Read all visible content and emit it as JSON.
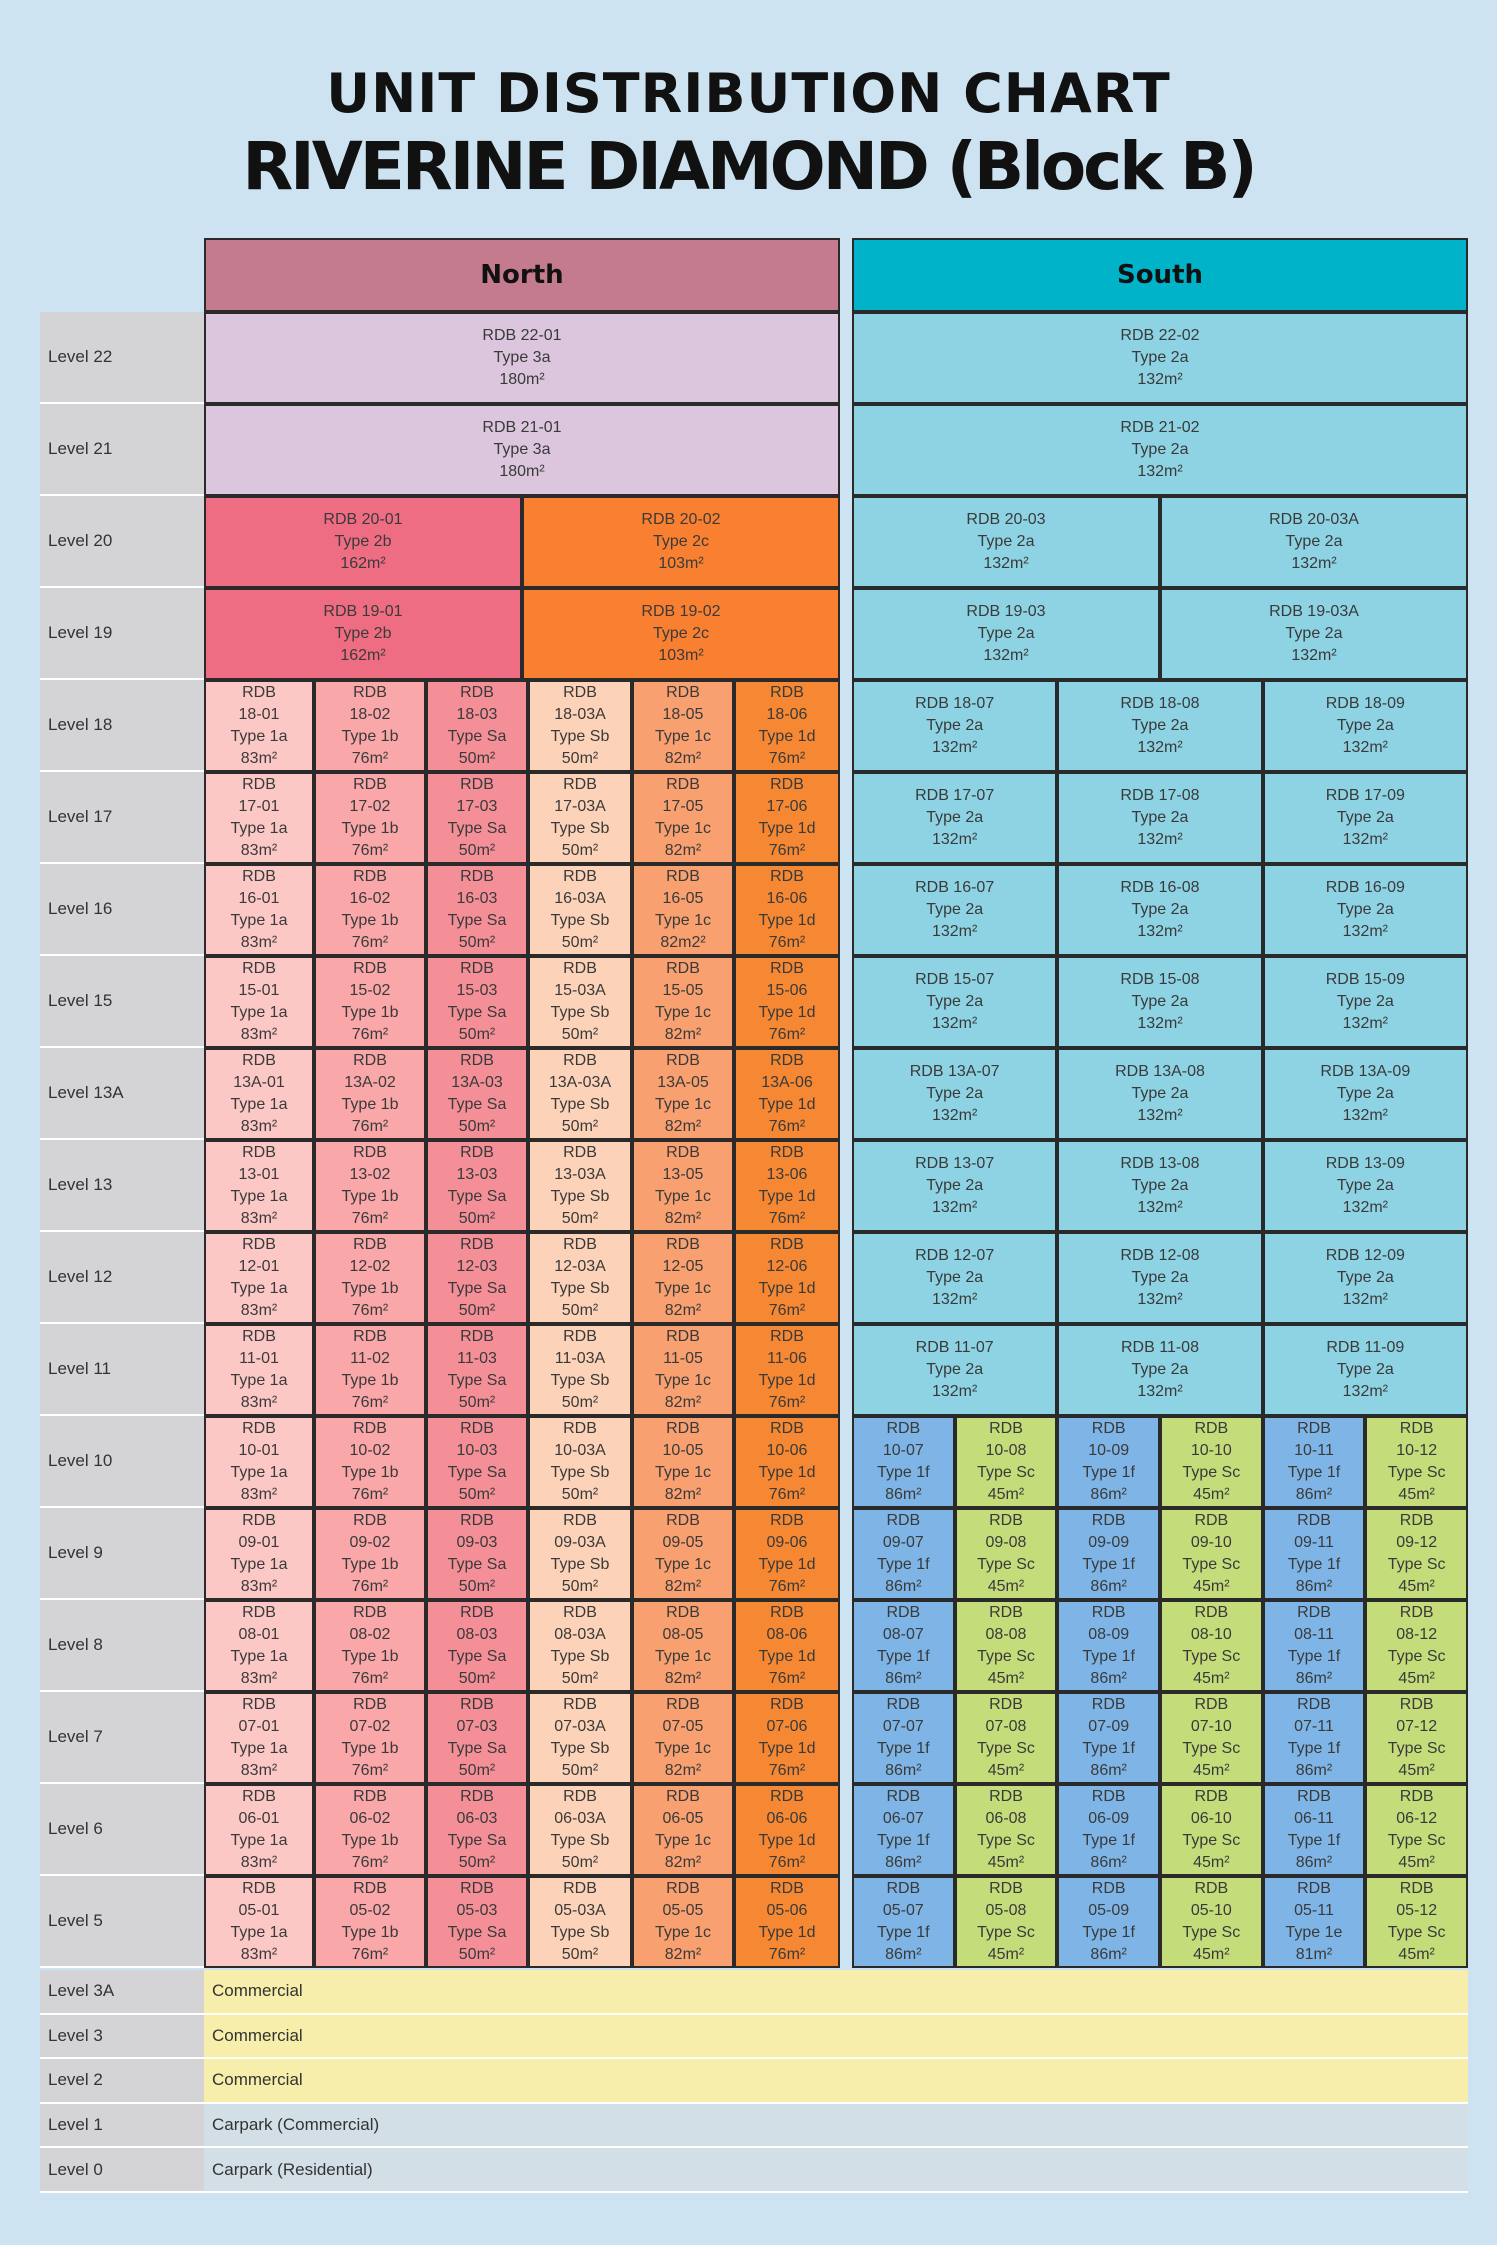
{
  "title": "UNIT DISTRIBUTION CHART",
  "subtitle": "RIVERINE DIAMOND (Block B)",
  "north_label": "North",
  "south_label": "South",
  "colors": {
    "1a": "#fcc8c6",
    "1b": "#f9a7a9",
    "Sa": "#f48f98",
    "Sb": "#fcd2b8",
    "1c": "#f9a070",
    "1d": "#f68833",
    "2b": "#ef6d82",
    "2c": "#f98030",
    "3a": "#dbc6dd",
    "2a": "#8dd3e3",
    "1f": "#7eb5e6",
    "Sc": "#c5dc7b",
    "1e": "#7eb5e6",
    "north_header": "#c47b8e",
    "south_header": "#00b3c8",
    "commercial": "#f6eeaa",
    "carpark": "#d2dfe6",
    "level": "#d4d4d6"
  },
  "top_levels": [
    {
      "level": "Level 22",
      "north": [
        {
          "code": "RDB 22-01",
          "type": "Type 3a",
          "area": "180m²",
          "key": "3a"
        }
      ],
      "south": [
        {
          "code": "RDB 22-02",
          "type": "Type 2a",
          "area": "132m²",
          "key": "2a"
        }
      ]
    },
    {
      "level": "Level 21",
      "north": [
        {
          "code": "RDB 21-01",
          "type": "Type 3a",
          "area": "180m²",
          "key": "3a"
        }
      ],
      "south": [
        {
          "code": "RDB 21-02",
          "type": "Type 2a",
          "area": "132m²",
          "key": "2a"
        }
      ]
    },
    {
      "level": "Level 20",
      "north": [
        {
          "code": "RDB 20-01",
          "type": "Type 2b",
          "area": "162m²",
          "key": "2b"
        },
        {
          "code": "RDB 20-02",
          "type": "Type 2c",
          "area": "103m²",
          "key": "2c"
        }
      ],
      "south": [
        {
          "code": "RDB 20-03",
          "type": "Type 2a",
          "area": "132m²",
          "key": "2a"
        },
        {
          "code": "RDB 20-03A",
          "type": "Type 2a",
          "area": "132m²",
          "key": "2a"
        }
      ]
    },
    {
      "level": "Level 19",
      "north": [
        {
          "code": "RDB 19-01",
          "type": "Type 2b",
          "area": "162m²",
          "key": "2b"
        },
        {
          "code": "RDB 19-02",
          "type": "Type 2c",
          "area": "103m²",
          "key": "2c"
        }
      ],
      "south": [
        {
          "code": "RDB 19-03",
          "type": "Type 2a",
          "area": "132m²",
          "key": "2a"
        },
        {
          "code": "RDB 19-03A",
          "type": "Type 2a",
          "area": "132m²",
          "key": "2a"
        }
      ]
    }
  ],
  "mid_levels": [
    {
      "level": "Level 18",
      "id": "18",
      "south_labels": [
        "RDB 18-07",
        "RDB 18-08",
        "RDB 18-09"
      ],
      "area_05": "82m²"
    },
    {
      "level": "Level 17",
      "id": "17",
      "south_labels": [
        "RDB 17-07",
        "RDB 17-08",
        "RDB 17-09"
      ],
      "area_05": "82m²"
    },
    {
      "level": "Level 16",
      "id": "16",
      "south_labels": [
        "RDB 16-07",
        "RDB 16-08",
        "RDB 16-09"
      ],
      "area_05": "82m2²"
    },
    {
      "level": "Level 15",
      "id": "15",
      "south_labels": [
        "RDB 15-07",
        "RDB 15-08",
        "RDB 15-09"
      ],
      "area_05": "82m²"
    },
    {
      "level": "Level 13A",
      "id": "13A",
      "south_labels": [
        "RDB 13A-07",
        "RDB 13A-08",
        "RDB 13A-09"
      ],
      "area_05": "82m²"
    },
    {
      "level": "Level 13",
      "id": "13",
      "south_labels": [
        "RDB 13-07",
        "RDB 13-08",
        "RDB 13-09"
      ],
      "area_05": "82m²"
    },
    {
      "level": "Level 12",
      "id": "12",
      "south_labels": [
        "RDB 12-07",
        "RDB 12-08",
        "RDB 12-09"
      ],
      "area_05": "82m²"
    },
    {
      "level": "Level 11",
      "id": "11",
      "south_labels": [
        "RDB 11-07",
        "RDB 11-08",
        "RDB 11-09"
      ],
      "area_05": "82m²"
    }
  ],
  "low_levels": [
    {
      "level": "Level 10",
      "id": "10"
    },
    {
      "level": "Level 9",
      "id": "09"
    },
    {
      "level": "Level 8",
      "id": "08"
    },
    {
      "level": "Level 7",
      "id": "07"
    },
    {
      "level": "Level 6",
      "id": "06"
    },
    {
      "level": "Level 5",
      "id": "05",
      "exception": {
        "col": 4,
        "type": "Type 1e",
        "area": "81m²",
        "key": "1e"
      }
    }
  ],
  "north_units": [
    {
      "suffix": "01",
      "type": "Type 1a",
      "area": "83m²",
      "key": "1a"
    },
    {
      "suffix": "02",
      "type": "Type 1b",
      "area": "76m²",
      "key": "1b"
    },
    {
      "suffix": "03",
      "type": "Type Sa",
      "area": "50m²",
      "key": "Sa"
    },
    {
      "suffix": "03A",
      "type": "Type Sb",
      "area": "50m²",
      "key": "Sb"
    },
    {
      "suffix": "05",
      "type": "Type 1c",
      "area": "82m²",
      "key": "1c"
    },
    {
      "suffix": "06",
      "type": "Type 1d",
      "area": "76m²",
      "key": "1d"
    }
  ],
  "south_mid_unit": {
    "type": "Type 2a",
    "area": "132m²",
    "key": "2a"
  },
  "south_low_units": [
    {
      "suffix": "07",
      "type": "Type 1f",
      "area": "86m²",
      "key": "1f"
    },
    {
      "suffix": "08",
      "type": "Type Sc",
      "area": "45m²",
      "key": "Sc"
    },
    {
      "suffix": "09",
      "type": "Type 1f",
      "area": "86m²",
      "key": "1f"
    },
    {
      "suffix": "10",
      "type": "Type Sc",
      "area": "45m²",
      "key": "Sc"
    },
    {
      "suffix": "11",
      "type": "Type 1f",
      "area": "86m²",
      "key": "1f"
    },
    {
      "suffix": "12",
      "type": "Type Sc",
      "area": "45m²",
      "key": "Sc"
    }
  ],
  "rdb_label": "RDB",
  "podium": [
    {
      "level": "Level 3A",
      "use": "Commercial",
      "key": "commercial"
    },
    {
      "level": "Level 3",
      "use": "Commercial",
      "key": "commercial"
    },
    {
      "level": "Level 2",
      "use": "Commercial",
      "key": "commercial"
    },
    {
      "level": "Level 1",
      "use": "Carpark (Commercial)",
      "key": "carpark"
    },
    {
      "level": "Level 0",
      "use": "Carpark (Residential)",
      "key": "carpark"
    }
  ]
}
